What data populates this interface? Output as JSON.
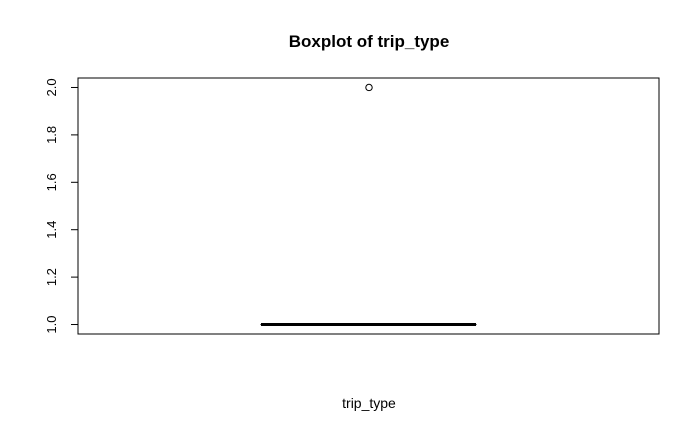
{
  "chart_data": {
    "type": "box",
    "title": "Boxplot of trip_type",
    "xlabel": "trip_type",
    "ylabel": "",
    "ylim": [
      0.96,
      2.04
    ],
    "yticks": [
      1.0,
      1.2,
      1.4,
      1.6,
      1.8,
      2.0
    ],
    "ytick_labels": [
      "1.0",
      "1.2",
      "1.4",
      "1.6",
      "1.8",
      "2.0"
    ],
    "box": {
      "min": 1.0,
      "q1": 1.0,
      "median": 1.0,
      "q3": 1.0,
      "max": 1.0
    },
    "outliers": [
      2.0
    ],
    "grid": false
  }
}
